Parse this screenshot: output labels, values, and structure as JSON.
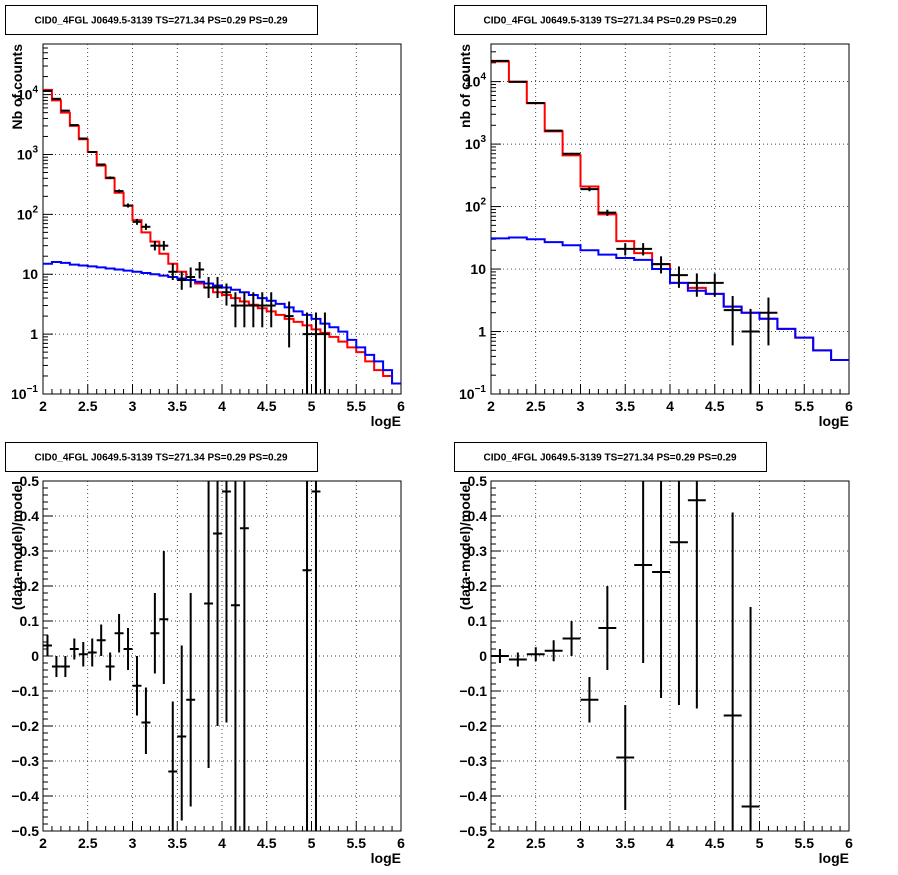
{
  "chart_data": [
    {
      "type": "line",
      "title": "CID0_4FGL J0649.5-3139 TS=271.34 PS=0.29 PS=0.29",
      "xlabel": "logE",
      "ylabel": "Nb of counts",
      "xlim": [
        2,
        6
      ],
      "ylim": [
        0.1,
        70000
      ],
      "yscale": "log",
      "grid": true,
      "x_ticks": [
        "2",
        "2.5",
        "3",
        "3.5",
        "4",
        "4.5",
        "5",
        "5.5",
        "6"
      ],
      "y_ticks": [
        {
          "value": 0.1,
          "base": "10",
          "exp": "−1"
        },
        {
          "value": 1,
          "label": "1"
        },
        {
          "value": 10,
          "label": "10"
        },
        {
          "value": 100,
          "base": "10",
          "exp": "2"
        },
        {
          "value": 1000,
          "base": "10",
          "exp": "3"
        },
        {
          "value": 10000,
          "base": "10",
          "exp": "4"
        }
      ],
      "bin_edges": [
        2.0,
        2.1,
        2.2,
        2.3,
        2.4,
        2.5,
        2.6,
        2.7,
        2.8,
        2.9,
        3.0,
        3.1,
        3.2,
        3.3,
        3.4,
        3.5,
        3.6,
        3.7,
        3.8,
        3.9,
        4.0,
        4.1,
        4.2,
        4.3,
        4.4,
        4.5,
        4.6,
        4.7,
        4.8,
        4.9,
        5.0,
        5.1,
        5.2,
        5.3,
        5.4,
        5.5,
        5.6,
        5.7,
        5.8,
        5.9,
        6.0
      ],
      "series": [
        {
          "name": "",
          "color": "#ff0000",
          "values": [
            12000,
            8000,
            5000,
            3000,
            1800,
            1100,
            650,
            400,
            230,
            140,
            80,
            50,
            35,
            22,
            15,
            11,
            8,
            7,
            6,
            5,
            4.5,
            4,
            3.5,
            3.1,
            2.7,
            2.4,
            2.1,
            1.8,
            1.6,
            1.4,
            1.2,
            1.05,
            0.9,
            0.75,
            0.6,
            0.5,
            0.35,
            0.25,
            0.2,
            0.15
          ]
        },
        {
          "name": "",
          "color": "#0000ff",
          "values": [
            15,
            16,
            15.5,
            14.5,
            14,
            13.5,
            13,
            12.5,
            12,
            11.5,
            11,
            10.5,
            10,
            9.5,
            9,
            8.5,
            8,
            7.5,
            7,
            6.5,
            6,
            5.5,
            5,
            4.5,
            4,
            3.6,
            3.2,
            2.8,
            2.4,
            2.1,
            1.8,
            1.5,
            1.3,
            1.1,
            0.8,
            0.6,
            0.45,
            0.35,
            0.25,
            0.15
          ]
        }
      ],
      "data_points": [
        {
          "x": 2.05,
          "y": 11500,
          "lo": 11300,
          "hi": 11700
        },
        {
          "x": 2.15,
          "y": 8500,
          "lo": 8350,
          "hi": 8650
        },
        {
          "x": 2.25,
          "y": 5400,
          "lo": 5300,
          "hi": 5500
        },
        {
          "x": 2.35,
          "y": 3100,
          "lo": 3040,
          "hi": 3160
        },
        {
          "x": 2.45,
          "y": 1850,
          "lo": 1800,
          "hi": 1900
        },
        {
          "x": 2.55,
          "y": 1100,
          "lo": 1070,
          "hi": 1130
        },
        {
          "x": 2.65,
          "y": 680,
          "lo": 660,
          "hi": 700
        },
        {
          "x": 2.75,
          "y": 410,
          "lo": 390,
          "hi": 430
        },
        {
          "x": 2.85,
          "y": 245,
          "lo": 230,
          "hi": 260
        },
        {
          "x": 2.95,
          "y": 140,
          "lo": 130,
          "hi": 152
        },
        {
          "x": 3.05,
          "y": 75,
          "lo": 67,
          "hi": 84
        },
        {
          "x": 3.15,
          "y": 62,
          "lo": 55,
          "hi": 70
        },
        {
          "x": 3.25,
          "y": 30,
          "lo": 25,
          "hi": 36
        },
        {
          "x": 3.35,
          "y": 30,
          "lo": 25,
          "hi": 36
        },
        {
          "x": 3.45,
          "y": 11,
          "lo": 8,
          "hi": 15
        },
        {
          "x": 3.55,
          "y": 8,
          "lo": 5.5,
          "hi": 11
        },
        {
          "x": 3.65,
          "y": 9,
          "lo": 6,
          "hi": 13
        },
        {
          "x": 3.75,
          "y": 12,
          "lo": 8.5,
          "hi": 16
        },
        {
          "x": 3.85,
          "y": 6,
          "lo": 4,
          "hi": 9
        },
        {
          "x": 3.95,
          "y": 6,
          "lo": 4,
          "hi": 9
        },
        {
          "x": 4.05,
          "y": 5,
          "lo": 3,
          "hi": 7
        },
        {
          "x": 4.15,
          "y": 3,
          "lo": 1.3,
          "hi": 5
        },
        {
          "x": 4.25,
          "y": 3,
          "lo": 1.3,
          "hi": 5
        },
        {
          "x": 4.35,
          "y": 3,
          "lo": 1.3,
          "hi": 5
        },
        {
          "x": 4.45,
          "y": 3,
          "lo": 1.3,
          "hi": 5
        },
        {
          "x": 4.55,
          "y": 3,
          "lo": 1.3,
          "hi": 5
        },
        {
          "x": 4.75,
          "y": 2,
          "lo": 0.6,
          "hi": 3.5
        },
        {
          "x": 4.95,
          "y": 1,
          "lo": 0.1,
          "hi": 2.3
        },
        {
          "x": 5.05,
          "y": 1,
          "lo": 0.1,
          "hi": 2.3
        },
        {
          "x": 5.15,
          "y": 1,
          "lo": 0.1,
          "hi": 2.3
        }
      ]
    },
    {
      "type": "line",
      "title": "CID0_4FGL J0649.5-3139 TS=271.34 PS=0.29 PS=0.29",
      "xlabel": "logE",
      "ylabel": "nb of counts",
      "xlim": [
        2,
        6
      ],
      "ylim": [
        0.1,
        40000
      ],
      "yscale": "log",
      "grid": true,
      "x_ticks": [
        "2",
        "2.5",
        "3",
        "3.5",
        "4",
        "4.5",
        "5",
        "5.5",
        "6"
      ],
      "y_ticks": [
        {
          "value": 0.1,
          "base": "10",
          "exp": "−1"
        },
        {
          "value": 1,
          "label": "1"
        },
        {
          "value": 10,
          "label": "10"
        },
        {
          "value": 100,
          "base": "10",
          "exp": "2"
        },
        {
          "value": 1000,
          "base": "10",
          "exp": "3"
        },
        {
          "value": 10000,
          "base": "10",
          "exp": "4"
        }
      ],
      "bin_edges": [
        2.0,
        2.2,
        2.4,
        2.6,
        2.8,
        3.0,
        3.2,
        3.4,
        3.6,
        3.8,
        4.0,
        4.2,
        4.4,
        4.6,
        4.8,
        5.0,
        5.2,
        5.4,
        5.6,
        5.8,
        6.0
      ],
      "series": [
        {
          "name": "",
          "color": "#ff0000",
          "values": [
            21000,
            10000,
            4500,
            1600,
            660,
            210,
            75,
            28,
            18,
            12,
            6,
            5,
            4,
            2.5,
            2,
            1.6,
            1.1,
            0.8,
            0.5,
            0.35
          ]
        },
        {
          "name": "",
          "color": "#0000ff",
          "values": [
            31,
            32,
            30,
            27,
            24,
            20,
            17,
            15,
            14,
            10,
            6,
            4.5,
            4,
            2.5,
            2,
            1.6,
            1.1,
            0.8,
            0.5,
            0.35
          ]
        }
      ],
      "data_points": [
        {
          "x": 2.1,
          "y": 21500,
          "lo": 21200,
          "hi": 21800
        },
        {
          "x": 2.3,
          "y": 9900,
          "lo": 9750,
          "hi": 10050
        },
        {
          "x": 2.5,
          "y": 4550,
          "lo": 4450,
          "hi": 4650
        },
        {
          "x": 2.7,
          "y": 1640,
          "lo": 1600,
          "hi": 1680
        },
        {
          "x": 2.9,
          "y": 700,
          "lo": 675,
          "hi": 725
        },
        {
          "x": 3.1,
          "y": 190,
          "lo": 176,
          "hi": 204
        },
        {
          "x": 3.3,
          "y": 80,
          "lo": 71,
          "hi": 89
        },
        {
          "x": 3.5,
          "y": 21,
          "lo": 16.5,
          "hi": 26
        },
        {
          "x": 3.7,
          "y": 21,
          "lo": 16.5,
          "hi": 26
        },
        {
          "x": 3.9,
          "y": 12,
          "lo": 8.5,
          "hi": 16
        },
        {
          "x": 4.1,
          "y": 8,
          "lo": 5,
          "hi": 11
        },
        {
          "x": 4.3,
          "y": 6,
          "lo": 3.6,
          "hi": 8.5
        },
        {
          "x": 4.5,
          "y": 6,
          "lo": 3.6,
          "hi": 8.5
        },
        {
          "x": 4.7,
          "y": 2.2,
          "lo": 0.6,
          "hi": 3.7
        },
        {
          "x": 4.9,
          "y": 1,
          "lo": 0.1,
          "hi": 2.3
        },
        {
          "x": 5.1,
          "y": 2,
          "lo": 0.6,
          "hi": 3.5
        }
      ]
    },
    {
      "type": "scatter",
      "title": "CID0_4FGL J0649.5-3139 TS=271.34 PS=0.29 PS=0.29",
      "xlabel": "logE",
      "ylabel": "(data-model)/model",
      "xlim": [
        2,
        6
      ],
      "ylim": [
        -0.5,
        0.5
      ],
      "grid": true,
      "x_ticks": [
        "2",
        "2.5",
        "3",
        "3.5",
        "4",
        "4.5",
        "5",
        "5.5",
        "6"
      ],
      "y_ticks": [
        "−0.5",
        "−0.4",
        "−0.3",
        "−0.2",
        "−0.1",
        "0",
        "0.1",
        "0.2",
        "0.3",
        "0.4",
        "0.5"
      ],
      "xerr": 0.05,
      "data_points": [
        {
          "x": 2.05,
          "y": 0.03,
          "lo": 0.0,
          "hi": 0.06
        },
        {
          "x": 2.15,
          "y": -0.03,
          "lo": -0.06,
          "hi": 0.0
        },
        {
          "x": 2.25,
          "y": -0.03,
          "lo": -0.06,
          "hi": 0.0
        },
        {
          "x": 2.35,
          "y": 0.02,
          "lo": -0.01,
          "hi": 0.05
        },
        {
          "x": 2.45,
          "y": 0.005,
          "lo": -0.03,
          "hi": 0.04
        },
        {
          "x": 2.55,
          "y": 0.01,
          "lo": -0.03,
          "hi": 0.05
        },
        {
          "x": 2.65,
          "y": 0.045,
          "lo": 0.0,
          "hi": 0.09
        },
        {
          "x": 2.75,
          "y": -0.03,
          "lo": -0.07,
          "hi": 0.01
        },
        {
          "x": 2.85,
          "y": 0.065,
          "lo": 0.01,
          "hi": 0.12
        },
        {
          "x": 2.95,
          "y": 0.02,
          "lo": -0.04,
          "hi": 0.08
        },
        {
          "x": 3.05,
          "y": -0.085,
          "lo": -0.17,
          "hi": 0.0
        },
        {
          "x": 3.15,
          "y": -0.19,
          "lo": -0.28,
          "hi": -0.09
        },
        {
          "x": 3.25,
          "y": 0.065,
          "lo": -0.05,
          "hi": 0.18
        },
        {
          "x": 3.35,
          "y": 0.105,
          "lo": -0.08,
          "hi": 0.3
        },
        {
          "x": 3.45,
          "y": -0.33,
          "lo": -0.5,
          "hi": -0.13
        },
        {
          "x": 3.55,
          "y": -0.23,
          "lo": -0.47,
          "hi": 0.03
        },
        {
          "x": 3.65,
          "y": -0.125,
          "lo": -0.43,
          "hi": 0.18
        },
        {
          "x": 3.85,
          "y": 0.15,
          "lo": -0.32,
          "hi": 0.5
        },
        {
          "x": 3.95,
          "y": 0.35,
          "lo": -0.2,
          "hi": 0.5
        },
        {
          "x": 4.05,
          "y": 0.47,
          "lo": -0.19,
          "hi": 0.5
        },
        {
          "x": 4.15,
          "y": 0.145,
          "lo": -0.5,
          "hi": 0.5
        },
        {
          "x": 4.25,
          "y": 0.365,
          "lo": -0.5,
          "hi": 0.5
        },
        {
          "x": 4.95,
          "y": 0.245,
          "lo": -0.5,
          "hi": 0.5
        },
        {
          "x": 5.05,
          "y": 0.47,
          "lo": -0.5,
          "hi": 0.5
        }
      ]
    },
    {
      "type": "scatter",
      "title": "CID0_4FGL J0649.5-3139 TS=271.34 PS=0.29 PS=0.29",
      "xlabel": "logE",
      "ylabel": "(data-model)/model",
      "xlim": [
        2,
        6
      ],
      "ylim": [
        -0.5,
        0.5
      ],
      "grid": true,
      "x_ticks": [
        "2",
        "2.5",
        "3",
        "3.5",
        "4",
        "4.5",
        "5",
        "5.5",
        "6"
      ],
      "y_ticks": [
        "−0.5",
        "−0.4",
        "−0.3",
        "−0.2",
        "−0.1",
        "0",
        "0.1",
        "0.2",
        "0.3",
        "0.4",
        "0.5"
      ],
      "xerr": 0.1,
      "data_points": [
        {
          "x": 2.1,
          "y": 0.0,
          "lo": -0.02,
          "hi": 0.02
        },
        {
          "x": 2.3,
          "y": -0.01,
          "lo": -0.03,
          "hi": 0.01
        },
        {
          "x": 2.5,
          "y": 0.005,
          "lo": -0.015,
          "hi": 0.025
        },
        {
          "x": 2.7,
          "y": 0.015,
          "lo": -0.015,
          "hi": 0.045
        },
        {
          "x": 2.9,
          "y": 0.05,
          "lo": 0.0,
          "hi": 0.1
        },
        {
          "x": 3.1,
          "y": -0.125,
          "lo": -0.19,
          "hi": -0.06
        },
        {
          "x": 3.3,
          "y": 0.08,
          "lo": -0.04,
          "hi": 0.2
        },
        {
          "x": 3.5,
          "y": -0.29,
          "lo": -0.44,
          "hi": -0.14
        },
        {
          "x": 3.7,
          "y": 0.26,
          "lo": -0.02,
          "hi": 0.5
        },
        {
          "x": 3.9,
          "y": 0.24,
          "lo": -0.12,
          "hi": 0.5
        },
        {
          "x": 4.1,
          "y": 0.325,
          "lo": -0.14,
          "hi": 0.5
        },
        {
          "x": 4.3,
          "y": 0.445,
          "lo": -0.15,
          "hi": 0.5
        },
        {
          "x": 4.7,
          "y": -0.17,
          "lo": -0.5,
          "hi": 0.41
        },
        {
          "x": 4.9,
          "y": -0.43,
          "lo": -0.5,
          "hi": 0.14
        }
      ]
    }
  ]
}
